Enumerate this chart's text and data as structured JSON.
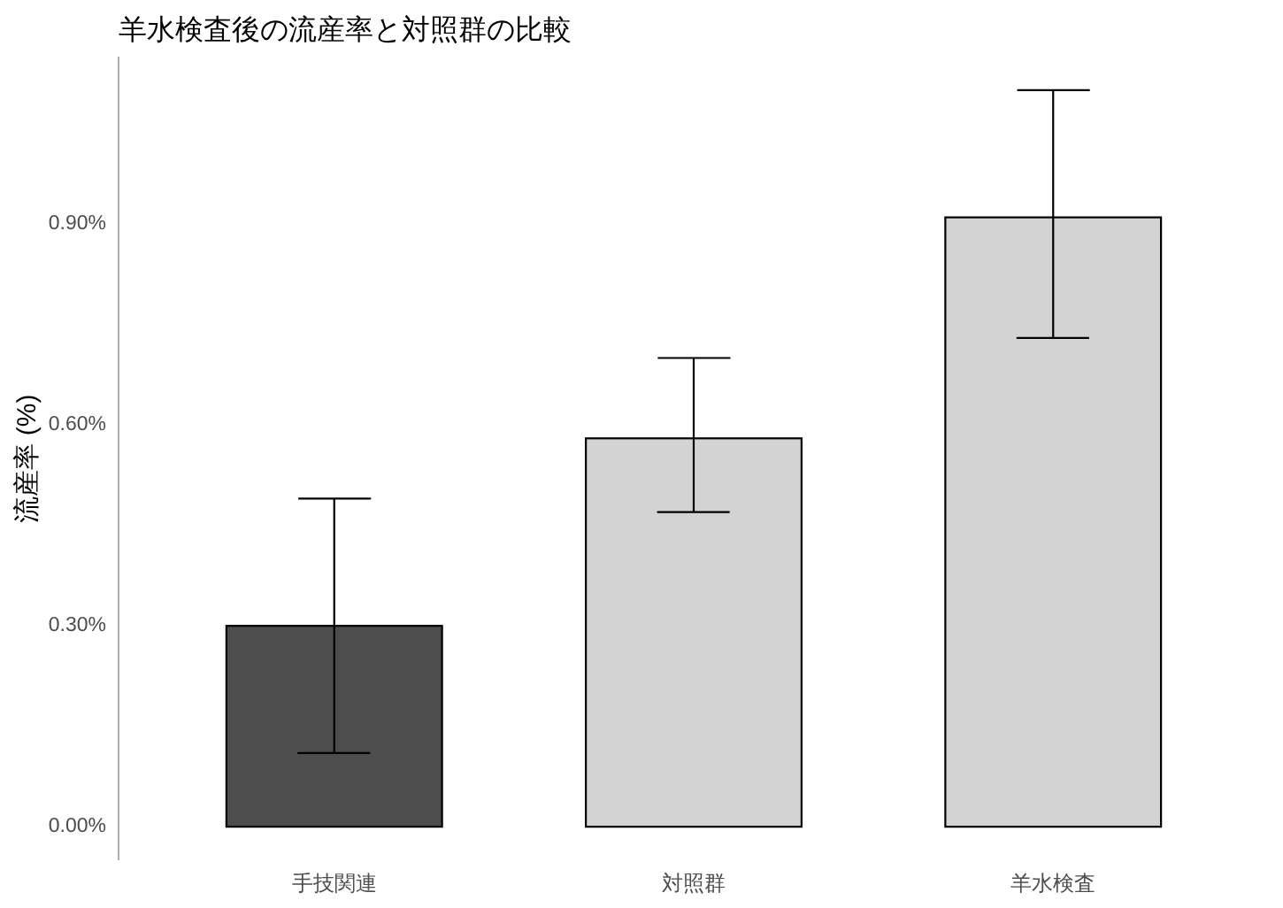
{
  "chart_data": {
    "type": "bar",
    "title": "羊水検査後の流産率と対照群の比較",
    "ylabel": "流産率 (%)",
    "categories": [
      "手技関連",
      "対照群",
      "羊水検査"
    ],
    "values": [
      0.3,
      0.58,
      0.91
    ],
    "colors": [
      "#4d4d4d",
      "#d3d3d3",
      "#d3d3d3"
    ],
    "errors": [
      [
        0.11,
        0.49
      ],
      [
        0.47,
        0.7
      ],
      [
        0.73,
        1.1
      ]
    ],
    "ylim": [
      -0.05,
      1.15
    ],
    "yticks": [
      {
        "value": 0,
        "label": "0.00%"
      },
      {
        "value": 0.3,
        "label": "0.30%"
      },
      {
        "value": 0.6,
        "label": "0.60%"
      },
      {
        "value": 0.9,
        "label": "0.90%"
      }
    ]
  }
}
